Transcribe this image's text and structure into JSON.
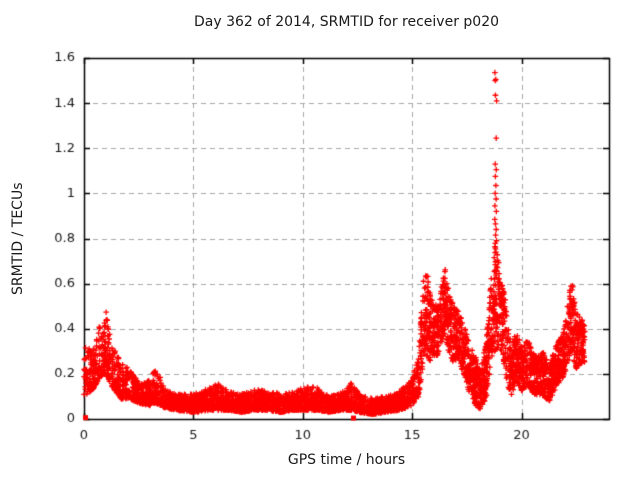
{
  "window": {
    "background": "#ffffff",
    "text_color": "#1a1a1a"
  },
  "chart_data": {
    "type": "scatter",
    "title": "Day 362 of 2014, SRMTID for receiver p020",
    "xlabel": "GPS time / hours",
    "ylabel": "SRMTID / TECUs",
    "xlim": [
      0,
      24
    ],
    "ylim": [
      0,
      1.6
    ],
    "xticks": [
      0,
      5,
      10,
      15,
      20
    ],
    "xtick_labels": [
      "0",
      "5",
      "10",
      "15",
      "20"
    ],
    "yticks": [
      0,
      0.2,
      0.4,
      0.6,
      0.8,
      1.0,
      1.2,
      1.4,
      1.6
    ],
    "ytick_labels": [
      "0",
      "0.2",
      "0.4",
      "0.6",
      "0.8",
      "1",
      "1.2",
      "1.4",
      "1.6"
    ],
    "grid": true,
    "grid_color": "#a8a8a8",
    "border_color": "#000000",
    "marker": "plus",
    "marker_color": "#ff0000",
    "marker_size_px": 5.6,
    "data_start_hour": 0.0,
    "data_end_hour": 22.9,
    "seed": 1362,
    "series_envelope": [
      [
        0.0,
        0.1,
        0.33,
        150
      ],
      [
        0.4,
        0.13,
        0.3,
        150
      ],
      [
        0.7,
        0.18,
        0.42,
        150
      ],
      [
        1.0,
        0.2,
        0.48,
        150
      ],
      [
        1.3,
        0.14,
        0.33,
        150
      ],
      [
        1.7,
        0.09,
        0.25,
        150
      ],
      [
        2.1,
        0.09,
        0.22,
        150
      ],
      [
        2.5,
        0.07,
        0.16,
        150
      ],
      [
        3.0,
        0.06,
        0.17,
        150
      ],
      [
        3.3,
        0.07,
        0.23,
        150
      ],
      [
        3.7,
        0.05,
        0.13,
        150
      ],
      [
        4.2,
        0.04,
        0.11,
        155
      ],
      [
        5.0,
        0.03,
        0.11,
        155
      ],
      [
        5.8,
        0.04,
        0.14,
        155
      ],
      [
        6.2,
        0.04,
        0.16,
        155
      ],
      [
        6.6,
        0.04,
        0.12,
        155
      ],
      [
        7.2,
        0.03,
        0.11,
        155
      ],
      [
        7.8,
        0.04,
        0.13,
        155
      ],
      [
        8.4,
        0.04,
        0.13,
        155
      ],
      [
        9.0,
        0.03,
        0.11,
        155
      ],
      [
        9.6,
        0.04,
        0.12,
        155
      ],
      [
        10.3,
        0.04,
        0.15,
        155
      ],
      [
        10.7,
        0.04,
        0.14,
        155
      ],
      [
        11.2,
        0.03,
        0.1,
        155
      ],
      [
        11.8,
        0.04,
        0.12,
        155
      ],
      [
        12.2,
        0.04,
        0.16,
        155
      ],
      [
        12.6,
        0.03,
        0.11,
        155
      ],
      [
        13.2,
        0.02,
        0.09,
        155
      ],
      [
        13.8,
        0.03,
        0.1,
        155
      ],
      [
        14.4,
        0.04,
        0.12,
        155
      ],
      [
        15.0,
        0.06,
        0.18,
        160
      ],
      [
        15.3,
        0.1,
        0.28,
        170
      ],
      [
        15.5,
        0.22,
        0.6,
        200
      ],
      [
        15.62,
        0.3,
        0.72,
        210
      ],
      [
        15.78,
        0.25,
        0.58,
        190
      ],
      [
        15.95,
        0.28,
        0.52,
        185
      ],
      [
        16.15,
        0.28,
        0.5,
        185
      ],
      [
        16.35,
        0.34,
        0.6,
        195
      ],
      [
        16.5,
        0.38,
        0.67,
        200
      ],
      [
        16.7,
        0.28,
        0.55,
        190
      ],
      [
        16.9,
        0.25,
        0.5,
        185
      ],
      [
        17.1,
        0.27,
        0.48,
        185
      ],
      [
        17.35,
        0.2,
        0.42,
        185
      ],
      [
        17.6,
        0.12,
        0.35,
        185
      ],
      [
        17.9,
        0.06,
        0.28,
        185
      ],
      [
        18.15,
        0.04,
        0.22,
        185
      ],
      [
        18.4,
        0.1,
        0.38,
        190
      ],
      [
        18.6,
        0.25,
        0.62,
        205
      ],
      [
        18.8,
        0.3,
        0.78,
        220
      ],
      [
        18.95,
        0.32,
        0.7,
        205
      ],
      [
        19.15,
        0.28,
        0.62,
        190
      ],
      [
        19.35,
        0.15,
        0.45,
        185
      ],
      [
        19.55,
        0.1,
        0.3,
        175
      ],
      [
        19.75,
        0.17,
        0.4,
        175
      ],
      [
        20.0,
        0.12,
        0.32,
        175
      ],
      [
        20.3,
        0.15,
        0.35,
        175
      ],
      [
        20.6,
        0.1,
        0.28,
        175
      ],
      [
        21.0,
        0.1,
        0.3,
        175
      ],
      [
        21.3,
        0.08,
        0.25,
        175
      ],
      [
        21.6,
        0.14,
        0.33,
        175
      ],
      [
        21.9,
        0.18,
        0.38,
        175
      ],
      [
        22.1,
        0.24,
        0.5,
        180
      ],
      [
        22.3,
        0.3,
        0.63,
        190
      ],
      [
        22.5,
        0.22,
        0.48,
        180
      ],
      [
        22.7,
        0.24,
        0.45,
        175
      ],
      [
        22.9,
        0.25,
        0.42,
        175
      ]
    ],
    "high_points": [
      [
        18.8,
        1.535
      ],
      [
        18.84,
        1.505
      ],
      [
        18.79,
        1.5
      ],
      [
        18.81,
        1.435
      ],
      [
        18.85,
        1.41
      ],
      [
        18.83,
        1.245
      ],
      [
        18.8,
        1.13
      ],
      [
        18.86,
        1.105
      ],
      [
        18.81,
        1.075
      ],
      [
        18.84,
        1.035
      ],
      [
        18.79,
        1.0
      ],
      [
        18.85,
        0.975
      ],
      [
        18.8,
        0.945
      ],
      [
        18.83,
        0.92
      ],
      [
        18.78,
        0.885
      ],
      [
        18.82,
        0.865
      ],
      [
        18.86,
        0.84
      ],
      [
        18.8,
        0.815
      ],
      [
        18.84,
        0.79
      ]
    ],
    "square_points": [
      [
        0.07,
        0.006
      ],
      [
        12.32,
        0.004
      ]
    ]
  }
}
